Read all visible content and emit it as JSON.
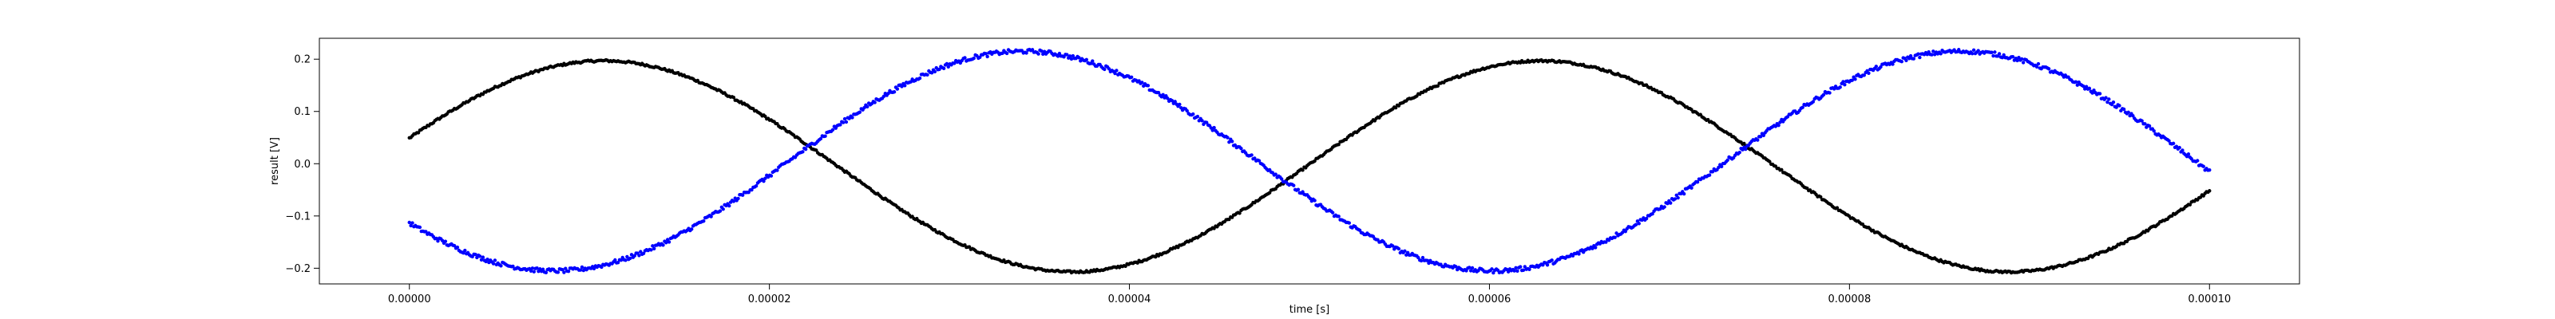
{
  "chart_data": {
    "type": "scatter",
    "title": "",
    "xlabel": "time [s]",
    "ylabel": "result [V]",
    "xlim": [
      -5e-06,
      0.000105
    ],
    "ylim": [
      -0.23,
      0.24
    ],
    "xticks": [
      0,
      2e-05,
      4e-05,
      6e-05,
      8e-05,
      0.0001
    ],
    "xtick_labels": [
      "0.00000",
      "0.00002",
      "0.00004",
      "0.00006",
      "0.00008",
      "0.00010"
    ],
    "yticks": [
      -0.2,
      -0.1,
      0.0,
      0.1,
      0.2
    ],
    "ytick_labels": [
      "−0.2",
      "−0.1",
      "0.0",
      "0.1",
      "0.2"
    ],
    "grid": false,
    "legend": "none",
    "series": [
      {
        "color": "#000000",
        "model": "sine",
        "amplitude": 0.202,
        "offset": -0.005,
        "frequency_hz": 19200,
        "phase_rad": 0.27,
        "x_start": 0,
        "x_end": 0.0001,
        "n_points": 1200,
        "noise": 0.002
      },
      {
        "color": "#0000ff",
        "model": "sine",
        "amplitude": 0.21,
        "offset": 0.005,
        "frequency_hz": 19200,
        "phase_rad": 3.74,
        "x_start": 0,
        "x_end": 0.0001,
        "n_points": 1200,
        "noise": 0.004
      }
    ]
  }
}
